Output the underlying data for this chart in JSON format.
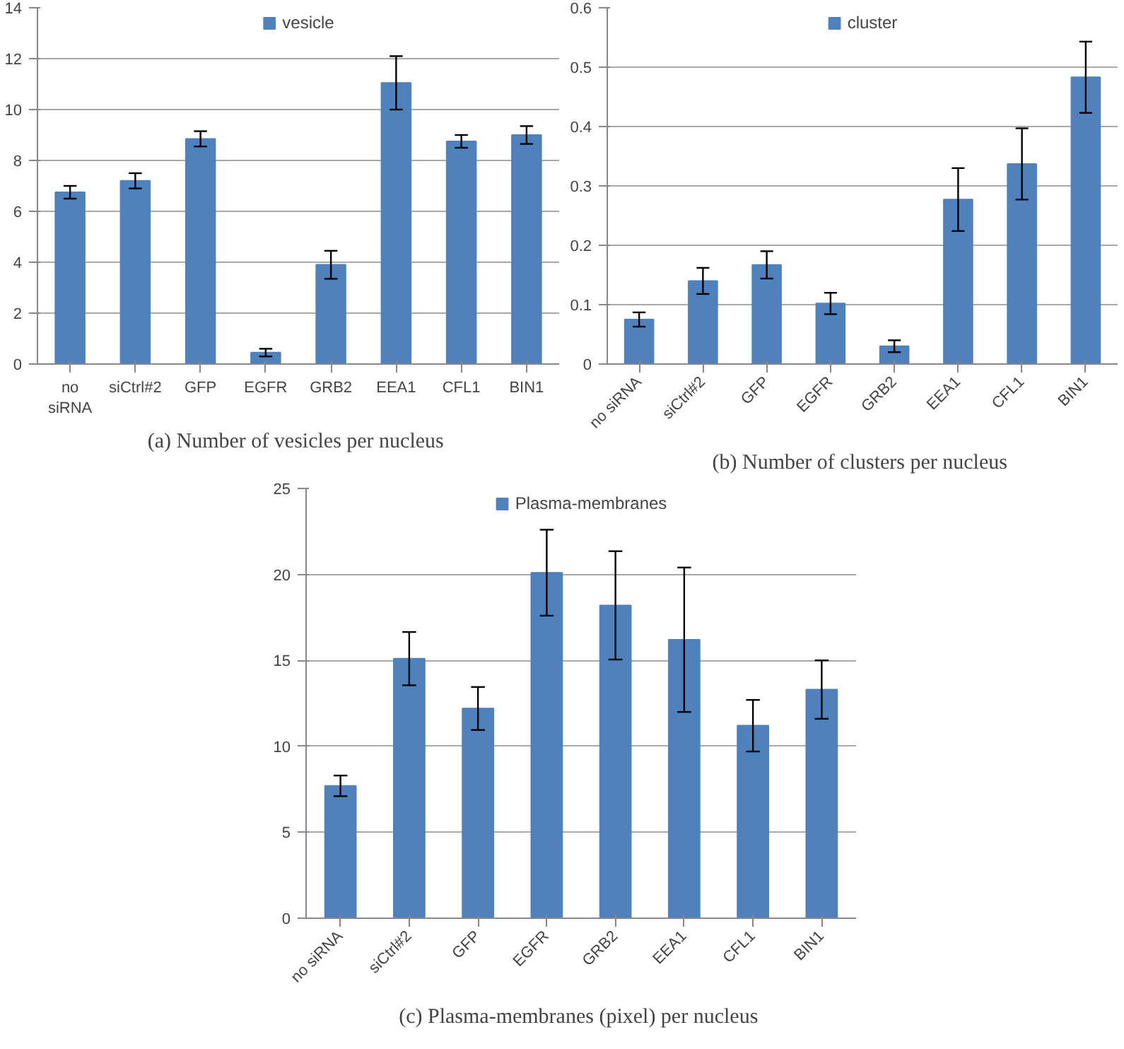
{
  "chart_data": [
    {
      "type": "bar",
      "title": "(a)  Number of vesicles per nucleus",
      "categories": [
        "no siRNA",
        "siCtrl#2",
        "GFP",
        "EGFR",
        "GRB2",
        "EEA1",
        "CFL1",
        "BIN1"
      ],
      "series": [
        {
          "name": "vesicle",
          "color": "#4f81bd",
          "values": [
            6.75,
            7.2,
            8.85,
            0.45,
            3.9,
            11.05,
            8.75,
            9.0
          ],
          "errors": [
            0.25,
            0.3,
            0.3,
            0.15,
            0.55,
            1.05,
            0.25,
            0.35
          ]
        }
      ],
      "ylim": [
        0,
        14
      ],
      "yticks": [
        0,
        2,
        4,
        6,
        8,
        10,
        12,
        14
      ],
      "grid": "y",
      "legend": "top"
    },
    {
      "type": "bar",
      "title": "(b)  Number of clusters per nucleus",
      "categories": [
        "no siRNA",
        "siCtrl#2",
        "GFP",
        "EGFR",
        "GRB2",
        "EEA1",
        "CFL1",
        "BIN1"
      ],
      "series": [
        {
          "name": "cluster",
          "color": "#4f81bd",
          "values": [
            0.075,
            0.14,
            0.167,
            0.102,
            0.03,
            0.277,
            0.337,
            0.483
          ],
          "errors": [
            0.012,
            0.022,
            0.023,
            0.018,
            0.01,
            0.053,
            0.06,
            0.06
          ]
        }
      ],
      "ylim": [
        0,
        0.6
      ],
      "yticks": [
        0,
        0.1,
        0.2,
        0.3,
        0.4,
        0.5,
        0.6
      ],
      "grid": "y",
      "legend": "top"
    },
    {
      "type": "bar",
      "title": "(c)  Plasma-membranes (pixel) per nucleus",
      "categories": [
        "no siRNA",
        "siCtrl#2",
        "GFP",
        "EGFR",
        "GRB2",
        "EEA1",
        "CFL1",
        "BIN1"
      ],
      "series": [
        {
          "name": "Plasma-membranes",
          "color": "#4f81bd",
          "values": [
            7.7,
            15.1,
            12.2,
            20.1,
            18.2,
            16.2,
            11.2,
            13.3
          ],
          "errors": [
            0.6,
            1.55,
            1.25,
            2.5,
            3.15,
            4.2,
            1.5,
            1.7
          ]
        }
      ],
      "ylim": [
        0,
        25
      ],
      "yticks": [
        0,
        5,
        10,
        15,
        20,
        25
      ],
      "grid": "y",
      "legend": "top"
    }
  ]
}
